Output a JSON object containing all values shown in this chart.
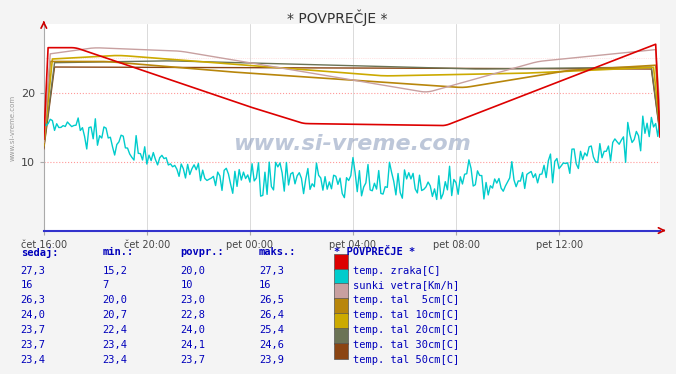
{
  "title": "* POVPREČJE *",
  "bg_color": "#f4f4f4",
  "plot_bg_color": "#ffffff",
  "y_min": 0,
  "y_max": 30,
  "x_ticks_pos": [
    0,
    48,
    96,
    144,
    192,
    240
  ],
  "x_labels": [
    "čet 16:00",
    "čet 20:00",
    "pet 00:00",
    "pet 04:00",
    "pet 08:00",
    "pet 12:00"
  ],
  "y_ticks": [
    10,
    20
  ],
  "colors": {
    "temp_zraka": "#dd0000",
    "sunki_vetra": "#00cccc",
    "temp_tal_5cm": "#c8a0a0",
    "temp_tal_10cm": "#b8860b",
    "temp_tal_20cm": "#ccaa00",
    "temp_tal_30cm": "#6b7355",
    "temp_tal_50cm": "#8B4513"
  },
  "table_headers": [
    "sedaj:",
    "min.:",
    "povpr.:",
    "maks.:",
    "* POVPREČJE *"
  ],
  "table_rows": [
    [
      "27,3",
      "15,2",
      "20,0",
      "27,3",
      "temp. zraka[C]",
      "#dd0000"
    ],
    [
      "16",
      "7",
      "10",
      "16",
      "sunki vetra[Km/h]",
      "#00cccc"
    ],
    [
      "26,3",
      "20,0",
      "23,0",
      "26,5",
      "temp. tal  5cm[C]",
      "#c8a0a0"
    ],
    [
      "24,0",
      "20,7",
      "22,8",
      "26,4",
      "temp. tal 10cm[C]",
      "#b8860b"
    ],
    [
      "23,7",
      "22,4",
      "24,0",
      "25,4",
      "temp. tal 20cm[C]",
      "#ccaa00"
    ],
    [
      "23,7",
      "23,4",
      "24,1",
      "24,6",
      "temp. tal 30cm[C]",
      "#6b7355"
    ],
    [
      "23,4",
      "23,4",
      "23,7",
      "23,9",
      "temp. tal 50cm[C]",
      "#8B4513"
    ]
  ],
  "watermark": "www.si-vreme.com",
  "left_label": "www.si-vreme.com"
}
